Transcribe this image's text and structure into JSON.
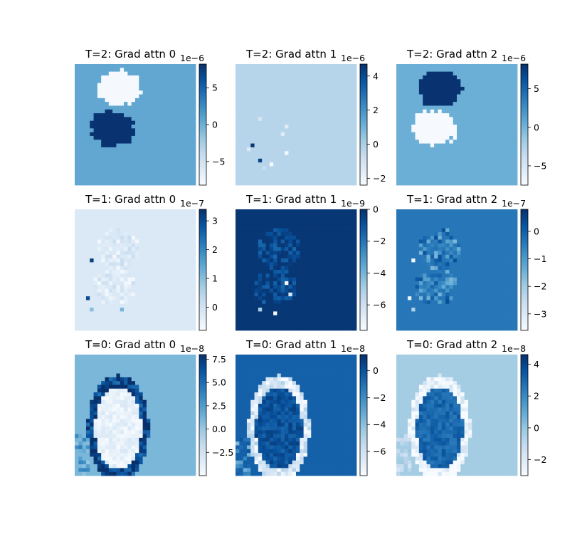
{
  "chart_data": [
    {
      "type": "heatmap",
      "title": "T=2: Grad attn 0",
      "colormap": "Blues",
      "colorbar_exponent": "1e−6",
      "vmin": -8.2,
      "vmax": 8.2,
      "colorbar_ticks": [
        -5,
        0,
        5
      ],
      "colorbar_tick_labels": [
        "−5",
        "0",
        "5"
      ],
      "background_value": 0.5,
      "pattern": "blobs",
      "blob_top_value": -8.0,
      "blob_bottom_value": 8.0,
      "speckles": []
    },
    {
      "type": "heatmap",
      "title": "T=2: Grad attn 1",
      "colormap": "Blues",
      "colorbar_exponent": "1e−6",
      "vmin": -2.4,
      "vmax": 4.7,
      "colorbar_ticks": [
        -2,
        0,
        2,
        4
      ],
      "colorbar_tick_labels": [
        "−2",
        "0",
        "2",
        "4"
      ],
      "background_value": -0.3,
      "pattern": "uniform",
      "speckles": [
        {
          "row": 14,
          "col": 6,
          "value": -1.2
        },
        {
          "row": 16,
          "col": 13,
          "value": -1.5
        },
        {
          "row": 18,
          "col": 12,
          "value": -1.6
        },
        {
          "row": 21,
          "col": 4,
          "value": 4.5
        },
        {
          "row": 22,
          "col": 3,
          "value": -1.4
        },
        {
          "row": 23,
          "col": 13,
          "value": -2.2
        },
        {
          "row": 25,
          "col": 6,
          "value": 4.2
        },
        {
          "row": 26,
          "col": 9,
          "value": -2.3
        },
        {
          "row": 27,
          "col": 7,
          "value": -0.8
        }
      ]
    },
    {
      "type": "heatmap",
      "title": "T=2: Grad attn 2",
      "colormap": "Blues",
      "colorbar_exponent": "1e−6",
      "vmin": -7.5,
      "vmax": 8.2,
      "colorbar_ticks": [
        -5,
        0,
        5
      ],
      "colorbar_tick_labels": [
        "−5",
        "0",
        "5"
      ],
      "background_value": 0.3,
      "pattern": "blobs",
      "blob_top_value": 8.0,
      "blob_bottom_value": -7.4,
      "speckles": []
    },
    {
      "type": "heatmap",
      "title": "T=1: Grad attn 0",
      "colormap": "Blues",
      "colorbar_exponent": "1e−7",
      "vmin": -0.8,
      "vmax": 3.4,
      "colorbar_ticks": [
        0,
        1,
        2,
        3
      ],
      "colorbar_tick_labels": [
        "0",
        "1",
        "2",
        "3"
      ],
      "background_value": -0.2,
      "pattern": "speckle",
      "speckle_range": [
        -0.7,
        0.2
      ],
      "speckles": [
        {
          "row": 13,
          "col": 4,
          "value": 3.2
        },
        {
          "row": 23,
          "col": 3,
          "value": 3.0
        },
        {
          "row": 26,
          "col": 4,
          "value": 1.0
        },
        {
          "row": 26,
          "col": 12,
          "value": 1.2
        }
      ]
    },
    {
      "type": "heatmap",
      "title": "T=1: Grad attn 1",
      "colormap": "Blues",
      "colorbar_exponent": "1e−9",
      "vmin": -7.6,
      "vmax": 0.0,
      "colorbar_ticks": [
        -6,
        -4,
        -2,
        0
      ],
      "colorbar_tick_labels": [
        "−6",
        "−4",
        "−2",
        "0"
      ],
      "background_value": -0.2,
      "pattern": "speckle",
      "speckle_range": [
        -1.6,
        -0.2
      ],
      "speckles": [
        {
          "row": 19,
          "col": 13,
          "value": -7.4
        },
        {
          "row": 22,
          "col": 14,
          "value": -6.5
        },
        {
          "row": 27,
          "col": 10,
          "value": -7.6
        },
        {
          "row": 26,
          "col": 6,
          "value": -5.0
        }
      ]
    },
    {
      "type": "heatmap",
      "title": "T=1: Grad attn 2",
      "colormap": "Blues",
      "colorbar_exponent": "1e−7",
      "vmin": -3.6,
      "vmax": 0.8,
      "colorbar_ticks": [
        -3,
        -2,
        -1,
        0
      ],
      "colorbar_tick_labels": [
        "−3",
        "−2",
        "−1",
        "0"
      ],
      "background_value": -0.4,
      "pattern": "speckle",
      "speckle_range": [
        -1.6,
        0.3
      ],
      "speckles": [
        {
          "row": 13,
          "col": 4,
          "value": -3.5
        },
        {
          "row": 23,
          "col": 3,
          "value": -3.3
        },
        {
          "row": 26,
          "col": 4,
          "value": -2.2
        }
      ]
    },
    {
      "type": "heatmap",
      "title": "T=0: Grad attn 0",
      "colormap": "Blues",
      "colorbar_exponent": "1e−8",
      "vmin": -5.0,
      "vmax": 8.0,
      "colorbar_ticks": [
        -2.5,
        0.0,
        2.5,
        5.0,
        7.5
      ],
      "colorbar_tick_labels": [
        "−2.5",
        "0.0",
        "2.5",
        "5.0",
        "7.5"
      ],
      "background_value": 1.0,
      "pattern": "oval",
      "oval_interior_value": -4.0,
      "oval_rim_value": 7.0,
      "speckles": []
    },
    {
      "type": "heatmap",
      "title": "T=0: Grad attn 1",
      "colormap": "Blues",
      "colorbar_exponent": "1e−8",
      "vmin": -7.8,
      "vmax": 1.2,
      "colorbar_ticks": [
        -6,
        -4,
        -2,
        0
      ],
      "colorbar_tick_labels": [
        "−6",
        "−4",
        "−2",
        "0"
      ],
      "background_value": -0.5,
      "pattern": "oval",
      "oval_interior_value": 0.0,
      "oval_rim_value": -6.5,
      "speckles": []
    },
    {
      "type": "heatmap",
      "title": "T=0: Grad attn 2",
      "colormap": "Blues",
      "colorbar_exponent": "1e−8",
      "vmin": -3.0,
      "vmax": 4.6,
      "colorbar_ticks": [
        -2,
        0,
        2,
        4
      ],
      "colorbar_tick_labels": [
        "−2",
        "0",
        "2",
        "4"
      ],
      "background_value": -0.3,
      "pattern": "oval",
      "oval_interior_value": 3.0,
      "oval_rim_value": -2.8,
      "speckles": []
    }
  ]
}
